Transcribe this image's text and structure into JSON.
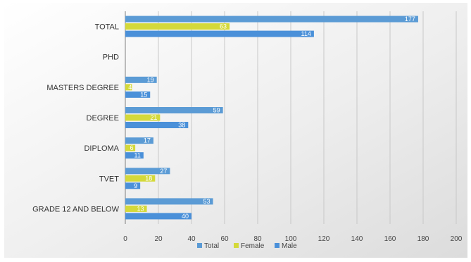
{
  "chart_data": {
    "type": "bar",
    "orientation": "horizontal",
    "title": "",
    "xlabel": "",
    "ylabel": "",
    "categories": [
      "TOTAL",
      "PHD",
      "MASTERS DEGREE",
      "DEGREE",
      "DIPLOMA",
      "TVET",
      "GRADE 12 AND BELOW"
    ],
    "series": [
      {
        "name": "Total",
        "color": "#5b9bd5",
        "values": [
          177,
          0,
          19,
          59,
          17,
          27,
          53
        ]
      },
      {
        "name": "Female",
        "color": "#d4d93a",
        "values": [
          63,
          0,
          4,
          21,
          6,
          18,
          13
        ]
      },
      {
        "name": "Male",
        "color": "#4a90d9",
        "values": [
          114,
          0,
          15,
          38,
          11,
          9,
          40
        ]
      }
    ],
    "xlim": [
      0,
      200
    ],
    "xticks": [
      "0",
      "20",
      "40",
      "60",
      "80",
      "100",
      "120",
      "140",
      "160",
      "180",
      "200"
    ],
    "grid": true,
    "legend_position": "bottom"
  }
}
